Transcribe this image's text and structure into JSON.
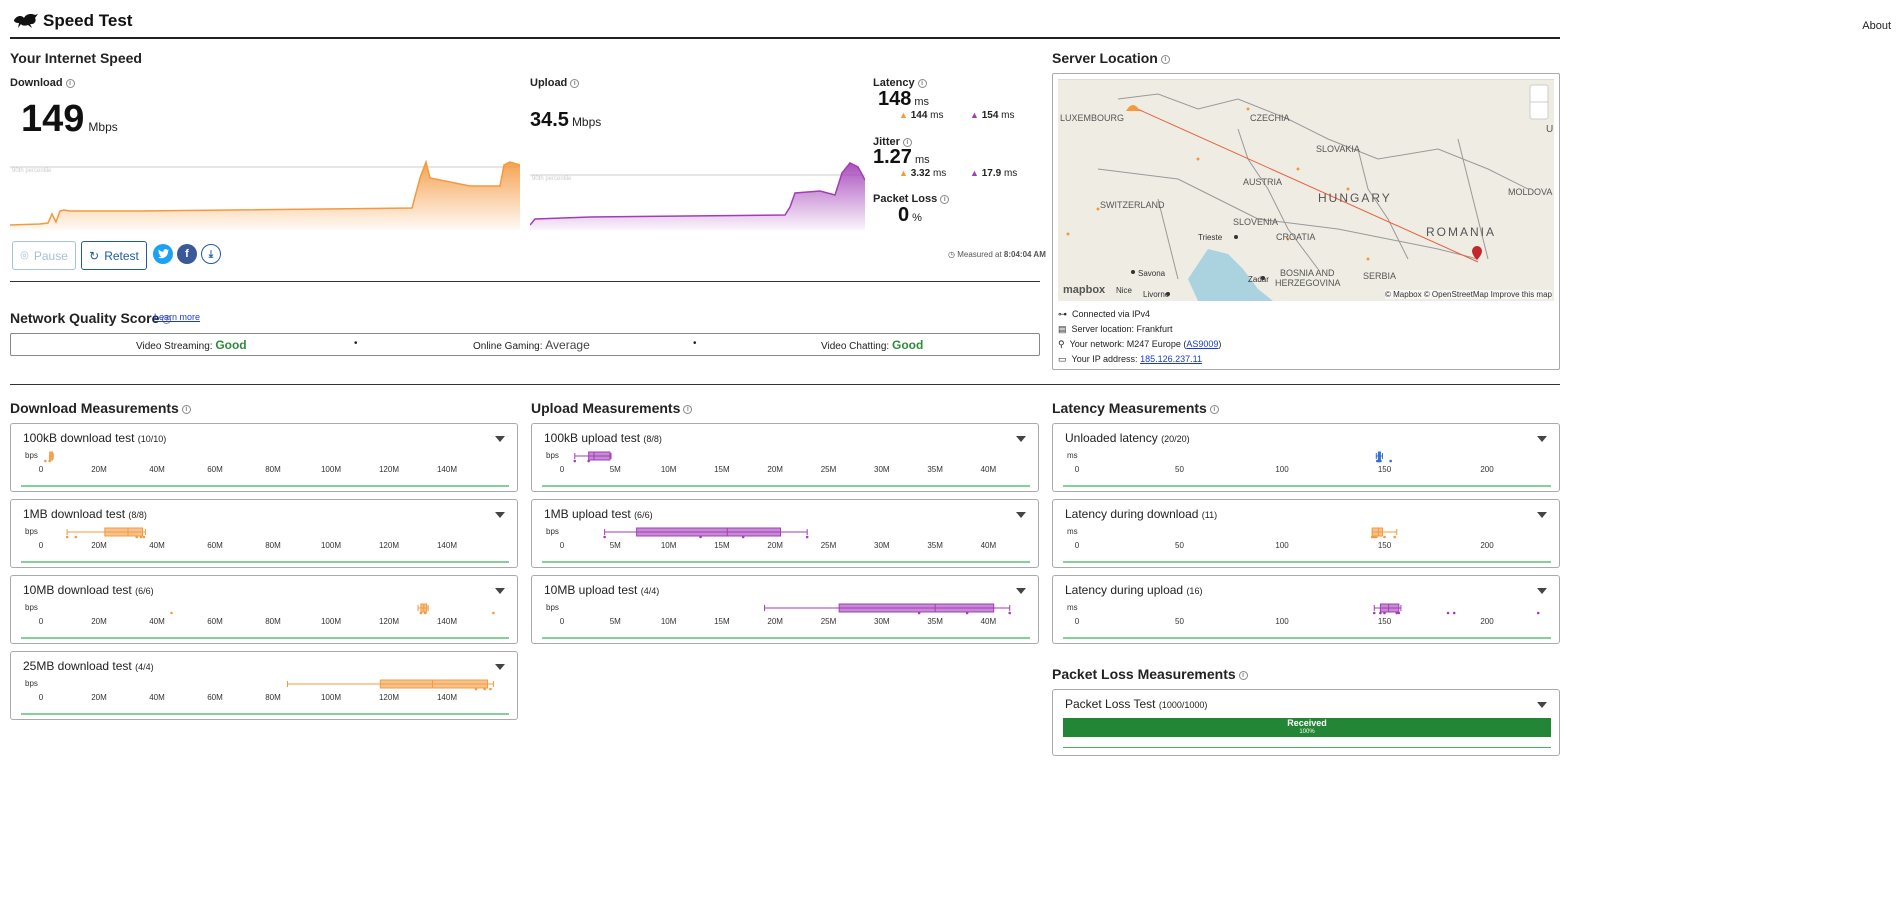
{
  "header": {
    "title": "Speed Test",
    "about": "About"
  },
  "speed": {
    "section_title": "Your Internet Speed",
    "download": {
      "label": "Download",
      "value": "149",
      "unit": "Mbps",
      "percentile": "90th percentile"
    },
    "upload": {
      "label": "Upload",
      "value": "34.5",
      "unit": "Mbps",
      "percentile": "90th percentile"
    },
    "latency": {
      "label": "Latency",
      "value": "148",
      "unit": "ms",
      "down": "144",
      "up": "154",
      "sub_unit": "ms"
    },
    "jitter": {
      "label": "Jitter",
      "value": "1.27",
      "unit": "ms",
      "down": "3.32",
      "up": "17.9",
      "sub_unit": "ms"
    },
    "packet_loss": {
      "label": "Packet Loss",
      "value": "0",
      "unit": "%"
    },
    "measured": "Measured at",
    "measured_time": "8:04:04 AM",
    "buttons": {
      "pause": "Pause",
      "retest": "Retest"
    }
  },
  "server": {
    "section_title": "Server Location",
    "connected": "Connected via IPv4",
    "location": "Server location: Frankfurt",
    "network_prefix": "Your network: M247 Europe (",
    "network_as": "AS9009",
    "network_suffix": ")",
    "ip_prefix": "Your IP address: ",
    "ip": "185.126.237.11",
    "map_attrib": "© Mapbox © OpenStreetMap  Improve this map",
    "map_logo": "mapbox",
    "map_labels": [
      "LUXEMBOURG",
      "CZECHIA",
      "SLOVAKIA",
      "AUSTRIA",
      "HUNGARY",
      "SWITZERLAND",
      "SLOVENIA",
      "CROATIA",
      "ROMANIA",
      "MOLDOVA",
      "BOSNIA AND",
      "HERZEGOVINA",
      "SERBIA",
      "Trieste",
      "Zadar",
      "Savona",
      "Nice",
      "Livorno",
      "U"
    ]
  },
  "nqs": {
    "title": "Network Quality Score",
    "learn": "Learn more",
    "streaming_label": "Video Streaming:",
    "streaming_value": "Good",
    "gaming_label": "Online Gaming:",
    "gaming_value": "Average",
    "chatting_label": "Video Chatting:",
    "chatting_value": "Good",
    "dot": "•"
  },
  "download_section": {
    "title": "Download Measurements",
    "unit": "bps",
    "ticks": [
      "0",
      "20M",
      "40M",
      "60M",
      "80M",
      "100M",
      "120M",
      "140M"
    ],
    "tests": [
      {
        "title": "100kB download test",
        "count": "(10/10)",
        "min": 3,
        "q1": 3,
        "med": 3.5,
        "q3": 4,
        "max": 4.2,
        "pts": [
          1.5,
          3.0
        ]
      },
      {
        "title": "1MB download test",
        "count": "(8/8)",
        "min": 9,
        "q1": 22,
        "med": 30,
        "q3": 35,
        "max": 36,
        "pts": [
          9,
          12,
          33,
          34.5,
          35.5
        ]
      },
      {
        "title": "10MB download test",
        "count": "(6/6)",
        "min": 130,
        "q1": 131,
        "med": 132,
        "q3": 133,
        "max": 133.5,
        "pts": [
          45,
          131,
          132.5,
          156
        ]
      },
      {
        "title": "25MB download test",
        "count": "(4/4)",
        "min": 85,
        "q1": 117,
        "med": 135,
        "q3": 154,
        "max": 156,
        "pts": [
          150,
          153,
          155
        ]
      }
    ]
  },
  "upload_section": {
    "title": "Upload Measurements",
    "unit": "bps",
    "ticks": [
      "0",
      "5M",
      "10M",
      "15M",
      "20M",
      "25M",
      "30M",
      "35M",
      "40M"
    ],
    "tests": [
      {
        "title": "100kB upload test",
        "count": "(8/8)",
        "min": 1.2,
        "q1": 2.5,
        "med": 3.0,
        "q3": 4.5,
        "max": 4.6,
        "pts": [
          1.2,
          2.5
        ]
      },
      {
        "title": "1MB upload test",
        "count": "(6/6)",
        "min": 4,
        "q1": 7,
        "med": 15.5,
        "q3": 20.5,
        "max": 23,
        "pts": [
          4,
          13,
          17,
          23
        ]
      },
      {
        "title": "10MB upload test",
        "count": "(4/4)",
        "min": 19,
        "q1": 26,
        "med": 35,
        "q3": 40.5,
        "max": 42,
        "pts": [
          33.5,
          38,
          42
        ]
      }
    ]
  },
  "latency_section": {
    "title": "Latency Measurements",
    "unit": "ms",
    "ticks": [
      "0",
      "50",
      "100",
      "150",
      "200"
    ],
    "tests": [
      {
        "title": "Unloaded latency",
        "count": "(20/20)",
        "color": "#2f6fd1",
        "min": 146,
        "q1": 147,
        "med": 147.5,
        "q3": 148,
        "max": 149,
        "pts": [
          146.5,
          147,
          147.5,
          148,
          153
        ]
      },
      {
        "title": "Latency during download",
        "count": "(11)",
        "color": "#f5993f",
        "min": 144,
        "q1": 144,
        "med": 147,
        "q3": 149,
        "max": 156,
        "pts": [
          144,
          145,
          146,
          150,
          155
        ]
      },
      {
        "title": "Latency during upload",
        "count": "(16)",
        "color": "#a23db7",
        "min": 145,
        "q1": 148,
        "med": 152,
        "q3": 157,
        "max": 158,
        "pts": [
          145,
          148,
          150,
          156,
          157,
          181,
          184,
          225
        ]
      }
    ]
  },
  "packet_loss_section": {
    "title": "Packet Loss Measurements",
    "test_title": "Packet Loss Test",
    "count": "(1000/1000)",
    "received": "Received",
    "pct": "100%",
    "received_fraction": 1.0
  },
  "colors": {
    "download": "#f5993f",
    "upload": "#a23db7",
    "good": "#2e8b3e",
    "green_line": "#3cb55c"
  }
}
